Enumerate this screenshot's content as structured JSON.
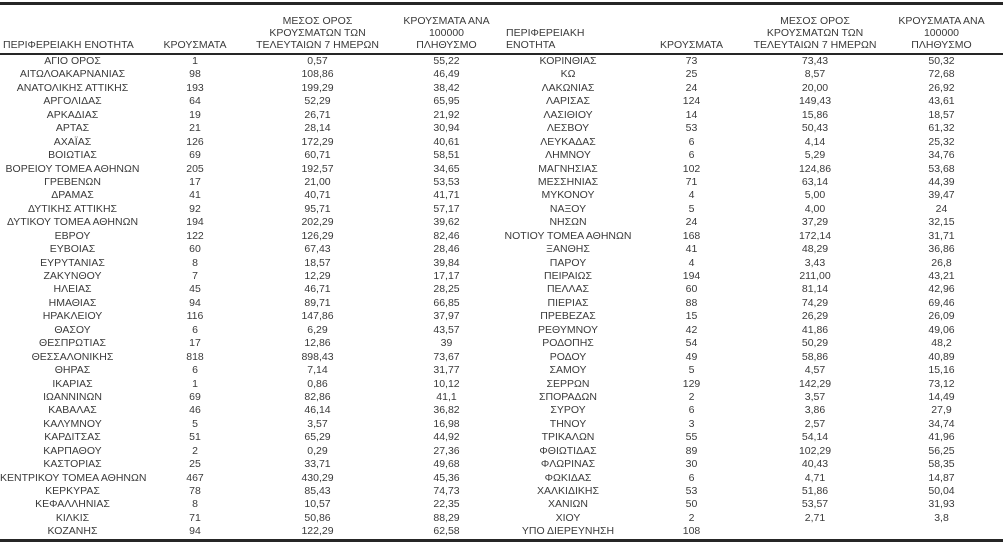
{
  "colors": {
    "background": "#ffffff",
    "text": "#3a3a3a",
    "border": "#262626"
  },
  "table": {
    "columns": [
      {
        "label": "ΠΕΡΙΦΕΡΕΙΑΚΗ ΕΝΟΤΗΤΑ"
      },
      {
        "label": "ΚΡΟΥΣΜΑΤΑ"
      },
      {
        "label": "ΜΕΣΟΣ ΟΡΟΣ\nΚΡΟΥΣΜΑΤΩΝ ΤΩΝ\nΤΕΛΕΥΤΑΙΩΝ 7 ΗΜΕΡΩΝ"
      },
      {
        "label": "ΚΡΟΥΣΜΑΤΑ ΑΝΑ 100000\nΠΛΗΘΥΣΜΟ"
      }
    ],
    "left_rows": [
      {
        "name": "ΑΓΙΟ ΟΡΟΣ",
        "cases": "1",
        "avg7": "0,57",
        "per100k": "55,22"
      },
      {
        "name": "ΑΙΤΩΛΟΑΚΑΡΝΑΝΙΑΣ",
        "cases": "98",
        "avg7": "108,86",
        "per100k": "46,49"
      },
      {
        "name": "ΑΝΑΤΟΛΙΚΗΣ ΑΤΤΙΚΗΣ",
        "cases": "193",
        "avg7": "199,29",
        "per100k": "38,42"
      },
      {
        "name": "ΑΡΓΟΛΙΔΑΣ",
        "cases": "64",
        "avg7": "52,29",
        "per100k": "65,95"
      },
      {
        "name": "ΑΡΚΑΔΙΑΣ",
        "cases": "19",
        "avg7": "26,71",
        "per100k": "21,92"
      },
      {
        "name": "ΑΡΤΑΣ",
        "cases": "21",
        "avg7": "28,14",
        "per100k": "30,94"
      },
      {
        "name": "ΑΧΑΪΑΣ",
        "cases": "126",
        "avg7": "172,29",
        "per100k": "40,61"
      },
      {
        "name": "ΒΟΙΩΤΙΑΣ",
        "cases": "69",
        "avg7": "60,71",
        "per100k": "58,51"
      },
      {
        "name": "ΒΟΡΕΙΟΥ ΤΟΜΕΑ ΑΘΗΝΩΝ",
        "cases": "205",
        "avg7": "192,57",
        "per100k": "34,65"
      },
      {
        "name": "ΓΡΕΒΕΝΩΝ",
        "cases": "17",
        "avg7": "21,00",
        "per100k": "53,53"
      },
      {
        "name": "ΔΡΑΜΑΣ",
        "cases": "41",
        "avg7": "40,71",
        "per100k": "41,71"
      },
      {
        "name": "ΔΥΤΙΚΗΣ ΑΤΤΙΚΗΣ",
        "cases": "92",
        "avg7": "95,71",
        "per100k": "57,17"
      },
      {
        "name": "ΔΥΤΙΚΟΥ ΤΟΜΕΑ ΑΘΗΝΩΝ",
        "cases": "194",
        "avg7": "202,29",
        "per100k": "39,62"
      },
      {
        "name": "ΕΒΡΟΥ",
        "cases": "122",
        "avg7": "126,29",
        "per100k": "82,46"
      },
      {
        "name": "ΕΥΒΟΙΑΣ",
        "cases": "60",
        "avg7": "67,43",
        "per100k": "28,46"
      },
      {
        "name": "ΕΥΡΥΤΑΝΙΑΣ",
        "cases": "8",
        "avg7": "18,57",
        "per100k": "39,84"
      },
      {
        "name": "ΖΑΚΥΝΘΟΥ",
        "cases": "7",
        "avg7": "12,29",
        "per100k": "17,17"
      },
      {
        "name": "ΗΛΕΙΑΣ",
        "cases": "45",
        "avg7": "46,71",
        "per100k": "28,25"
      },
      {
        "name": "ΗΜΑΘΙΑΣ",
        "cases": "94",
        "avg7": "89,71",
        "per100k": "66,85"
      },
      {
        "name": "ΗΡΑΚΛΕΙΟΥ",
        "cases": "116",
        "avg7": "147,86",
        "per100k": "37,97"
      },
      {
        "name": "ΘΑΣΟΥ",
        "cases": "6",
        "avg7": "6,29",
        "per100k": "43,57"
      },
      {
        "name": "ΘΕΣΠΡΩΤΙΑΣ",
        "cases": "17",
        "avg7": "12,86",
        "per100k": "39"
      },
      {
        "name": "ΘΕΣΣΑΛΟΝΙΚΗΣ",
        "cases": "818",
        "avg7": "898,43",
        "per100k": "73,67"
      },
      {
        "name": "ΘΗΡΑΣ",
        "cases": "6",
        "avg7": "7,14",
        "per100k": "31,77"
      },
      {
        "name": "ΙΚΑΡΙΑΣ",
        "cases": "1",
        "avg7": "0,86",
        "per100k": "10,12"
      },
      {
        "name": "ΙΩΑΝΝΙΝΩΝ",
        "cases": "69",
        "avg7": "82,86",
        "per100k": "41,1"
      },
      {
        "name": "ΚΑΒΑΛΑΣ",
        "cases": "46",
        "avg7": "46,14",
        "per100k": "36,82"
      },
      {
        "name": "ΚΑΛΥΜΝΟΥ",
        "cases": "5",
        "avg7": "3,57",
        "per100k": "16,98"
      },
      {
        "name": "ΚΑΡΔΙΤΣΑΣ",
        "cases": "51",
        "avg7": "65,29",
        "per100k": "44,92"
      },
      {
        "name": "ΚΑΡΠΑΘΟΥ",
        "cases": "2",
        "avg7": "0,29",
        "per100k": "27,36"
      },
      {
        "name": "ΚΑΣΤΟΡΙΑΣ",
        "cases": "25",
        "avg7": "33,71",
        "per100k": "49,68"
      },
      {
        "name": "ΚΕΝΤΡΙΚΟΥ ΤΟΜΕΑ ΑΘΗΝΩΝ",
        "cases": "467",
        "avg7": "430,29",
        "per100k": "45,36"
      },
      {
        "name": "ΚΕΡΚΥΡΑΣ",
        "cases": "78",
        "avg7": "85,43",
        "per100k": "74,73"
      },
      {
        "name": "ΚΕΦΑΛΛΗΝΙΑΣ",
        "cases": "8",
        "avg7": "10,57",
        "per100k": "22,35"
      },
      {
        "name": "ΚΙΛΚΙΣ",
        "cases": "71",
        "avg7": "50,86",
        "per100k": "88,29"
      },
      {
        "name": "ΚΟΖΑΝΗΣ",
        "cases": "94",
        "avg7": "122,29",
        "per100k": "62,58"
      }
    ],
    "right_rows": [
      {
        "name": "ΚΟΡΙΝΘΙΑΣ",
        "cases": "73",
        "avg7": "73,43",
        "per100k": "50,32"
      },
      {
        "name": "ΚΩ",
        "cases": "25",
        "avg7": "8,57",
        "per100k": "72,68"
      },
      {
        "name": "ΛΑΚΩΝΙΑΣ",
        "cases": "24",
        "avg7": "20,00",
        "per100k": "26,92"
      },
      {
        "name": "ΛΑΡΙΣΑΣ",
        "cases": "124",
        "avg7": "149,43",
        "per100k": "43,61"
      },
      {
        "name": "ΛΑΣΙΘΙΟΥ",
        "cases": "14",
        "avg7": "15,86",
        "per100k": "18,57"
      },
      {
        "name": "ΛΕΣΒΟΥ",
        "cases": "53",
        "avg7": "50,43",
        "per100k": "61,32"
      },
      {
        "name": "ΛΕΥΚΑΔΑΣ",
        "cases": "6",
        "avg7": "4,14",
        "per100k": "25,32"
      },
      {
        "name": "ΛΗΜΝΟΥ",
        "cases": "6",
        "avg7": "5,29",
        "per100k": "34,76"
      },
      {
        "name": "ΜΑΓΝΗΣΙΑΣ",
        "cases": "102",
        "avg7": "124,86",
        "per100k": "53,68"
      },
      {
        "name": "ΜΕΣΣΗΝΙΑΣ",
        "cases": "71",
        "avg7": "63,14",
        "per100k": "44,39"
      },
      {
        "name": "ΜΥΚΟΝΟΥ",
        "cases": "4",
        "avg7": "5,00",
        "per100k": "39,47"
      },
      {
        "name": "ΝΑΞΟΥ",
        "cases": "5",
        "avg7": "4,00",
        "per100k": "24"
      },
      {
        "name": "ΝΗΣΩΝ",
        "cases": "24",
        "avg7": "37,29",
        "per100k": "32,15"
      },
      {
        "name": "ΝΟΤΙΟΥ ΤΟΜΕΑ ΑΘΗΝΩΝ",
        "cases": "168",
        "avg7": "172,14",
        "per100k": "31,71"
      },
      {
        "name": "ΞΑΝΘΗΣ",
        "cases": "41",
        "avg7": "48,29",
        "per100k": "36,86"
      },
      {
        "name": "ΠΑΡΟΥ",
        "cases": "4",
        "avg7": "3,43",
        "per100k": "26,8"
      },
      {
        "name": "ΠΕΙΡΑΙΩΣ",
        "cases": "194",
        "avg7": "211,00",
        "per100k": "43,21"
      },
      {
        "name": "ΠΕΛΛΑΣ",
        "cases": "60",
        "avg7": "81,14",
        "per100k": "42,96"
      },
      {
        "name": "ΠΙΕΡΙΑΣ",
        "cases": "88",
        "avg7": "74,29",
        "per100k": "69,46"
      },
      {
        "name": "ΠΡΕΒΕΖΑΣ",
        "cases": "15",
        "avg7": "26,29",
        "per100k": "26,09"
      },
      {
        "name": "ΡΕΘΥΜΝΟΥ",
        "cases": "42",
        "avg7": "41,86",
        "per100k": "49,06"
      },
      {
        "name": "ΡΟΔΟΠΗΣ",
        "cases": "54",
        "avg7": "50,29",
        "per100k": "48,2"
      },
      {
        "name": "ΡΟΔΟΥ",
        "cases": "49",
        "avg7": "58,86",
        "per100k": "40,89"
      },
      {
        "name": "ΣΑΜΟΥ",
        "cases": "5",
        "avg7": "4,57",
        "per100k": "15,16"
      },
      {
        "name": "ΣΕΡΡΩΝ",
        "cases": "129",
        "avg7": "142,29",
        "per100k": "73,12"
      },
      {
        "name": "ΣΠΟΡΑΔΩΝ",
        "cases": "2",
        "avg7": "3,57",
        "per100k": "14,49"
      },
      {
        "name": "ΣΥΡΟΥ",
        "cases": "6",
        "avg7": "3,86",
        "per100k": "27,9"
      },
      {
        "name": "ΤΗΝΟΥ",
        "cases": "3",
        "avg7": "2,57",
        "per100k": "34,74"
      },
      {
        "name": "ΤΡΙΚΑΛΩΝ",
        "cases": "55",
        "avg7": "54,14",
        "per100k": "41,96"
      },
      {
        "name": "ΦΘΙΩΤΙΔΑΣ",
        "cases": "89",
        "avg7": "102,29",
        "per100k": "56,25"
      },
      {
        "name": "ΦΛΩΡΙΝΑΣ",
        "cases": "30",
        "avg7": "40,43",
        "per100k": "58,35"
      },
      {
        "name": "ΦΩΚΙΔΑΣ",
        "cases": "6",
        "avg7": "4,71",
        "per100k": "14,87"
      },
      {
        "name": "ΧΑΛΚΙΔΙΚΗΣ",
        "cases": "53",
        "avg7": "51,86",
        "per100k": "50,04"
      },
      {
        "name": "ΧΑΝΙΩΝ",
        "cases": "50",
        "avg7": "53,57",
        "per100k": "31,93"
      },
      {
        "name": "ΧΙΟΥ",
        "cases": "2",
        "avg7": "2,71",
        "per100k": "3,8"
      },
      {
        "name": "ΥΠΟ ΔΙΕΡΕΥΝΗΣΗ",
        "cases": "108",
        "avg7": "",
        "per100k": ""
      }
    ]
  }
}
